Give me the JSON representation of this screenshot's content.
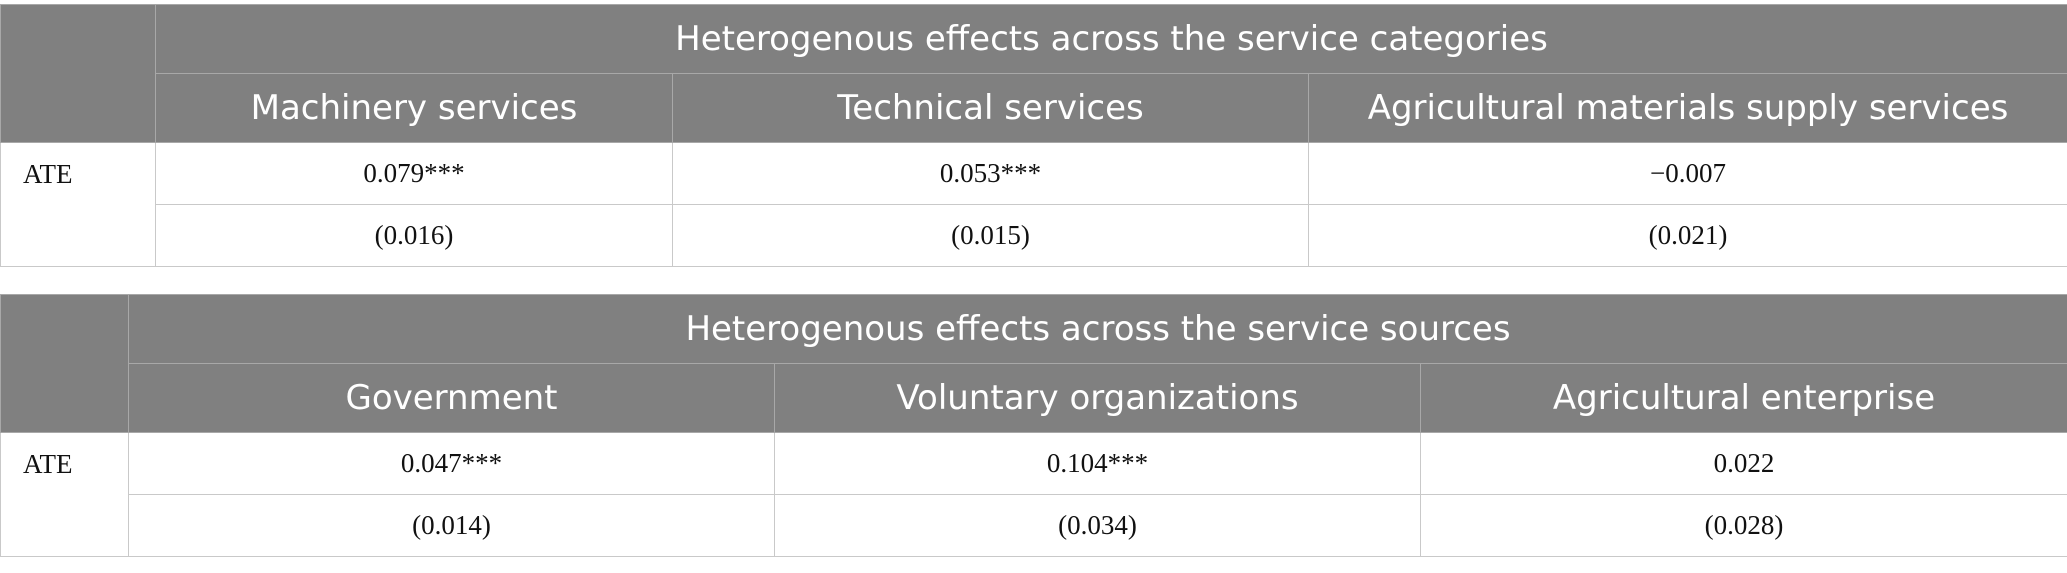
{
  "tables": [
    {
      "group_header": "Heterogenous effects across the service categories",
      "columns": [
        "Machinery services",
        "Technical services",
        "Agricultural materials supply services"
      ],
      "row_label": "ATE",
      "estimates": [
        "0.079***",
        "0.053***",
        "−0.007"
      ],
      "std_errors": [
        "(0.016)",
        "(0.015)",
        "(0.021)"
      ]
    },
    {
      "group_header": "Heterogenous effects across the service sources",
      "columns": [
        "Government",
        "Voluntary organizations",
        "Agricultural enterprise"
      ],
      "row_label": "ATE",
      "estimates": [
        "0.047***",
        "0.104***",
        "0.022"
      ],
      "std_errors": [
        "(0.014)",
        "(0.034)",
        "(0.028)"
      ]
    }
  ]
}
